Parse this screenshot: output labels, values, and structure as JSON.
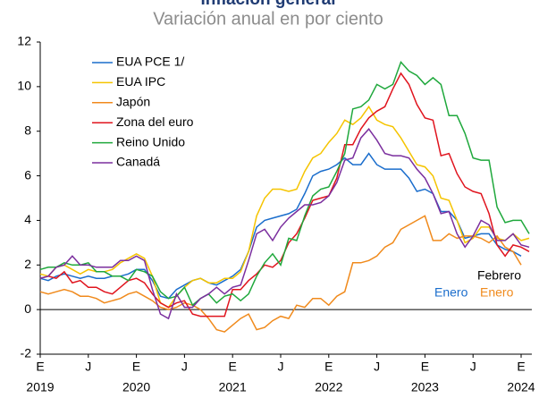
{
  "chart_data": {
    "type": "line",
    "title": "Inflación general",
    "subtitle": "Variación anual en por ciento",
    "categories": [
      "E",
      null,
      null,
      null,
      null,
      null,
      "J",
      null,
      null,
      null,
      null,
      null,
      "E",
      null,
      null,
      null,
      null,
      null,
      "J",
      null,
      null,
      null,
      null,
      null,
      "E",
      null,
      null,
      null,
      null,
      null,
      "J",
      null,
      null,
      null,
      null,
      null,
      "E",
      null,
      null,
      null,
      null,
      null,
      "J",
      null,
      null,
      null,
      null,
      null,
      "E",
      null,
      null,
      null,
      null,
      null,
      "J",
      null,
      null,
      null,
      null,
      null,
      "E",
      null
    ],
    "year_labels": [
      "2019",
      null,
      null,
      null,
      null,
      null,
      null,
      null,
      null,
      null,
      null,
      null,
      "2020",
      null,
      null,
      null,
      null,
      null,
      null,
      null,
      null,
      null,
      null,
      null,
      "2021",
      null,
      null,
      null,
      null,
      null,
      null,
      null,
      null,
      null,
      null,
      null,
      "2022",
      null,
      null,
      null,
      null,
      null,
      null,
      null,
      null,
      null,
      null,
      null,
      "2023",
      null,
      null,
      null,
      null,
      null,
      null,
      null,
      null,
      null,
      null,
      null,
      "2024",
      null
    ],
    "ylim": [
      -2,
      12
    ],
    "yticks": [
      -2,
      0,
      2,
      4,
      6,
      8,
      10,
      12
    ],
    "series": [
      {
        "name": "EUA PCE 1/",
        "color": "#1a6dcc",
        "values": [
          1.4,
          1.3,
          1.5,
          1.6,
          1.5,
          1.4,
          1.5,
          1.4,
          1.4,
          1.5,
          1.5,
          1.6,
          1.8,
          1.8,
          1.3,
          0.6,
          0.5,
          0.9,
          1.1,
          1.3,
          1.4,
          1.2,
          1.1,
          1.3,
          1.5,
          1.8,
          2.6,
          3.7,
          4.0,
          4.1,
          4.2,
          4.3,
          4.5,
          5.2,
          6.0,
          6.2,
          6.3,
          6.5,
          6.8,
          6.5,
          6.5,
          7.0,
          6.5,
          6.3,
          6.3,
          6.3,
          5.9,
          5.3,
          5.4,
          5.2,
          4.4,
          4.4,
          4.0,
          3.2,
          3.3,
          3.4,
          3.4,
          2.9,
          2.7,
          2.6,
          2.4,
          null
        ]
      },
      {
        "name": "EUA IPC",
        "color": "#f5c400",
        "values": [
          1.6,
          1.5,
          1.9,
          2.0,
          1.8,
          1.6,
          1.8,
          1.7,
          1.7,
          1.8,
          2.1,
          2.3,
          2.5,
          2.3,
          1.5,
          0.3,
          0.1,
          0.6,
          1.0,
          1.3,
          1.4,
          1.2,
          1.2,
          1.4,
          1.4,
          1.7,
          2.6,
          4.2,
          5.0,
          5.4,
          5.4,
          5.3,
          5.4,
          6.2,
          6.8,
          7.0,
          7.5,
          7.9,
          8.5,
          8.3,
          8.6,
          9.1,
          8.5,
          8.3,
          8.2,
          7.7,
          7.1,
          6.5,
          6.4,
          6.0,
          5.0,
          4.9,
          4.0,
          3.0,
          3.2,
          3.7,
          3.7,
          3.2,
          3.1,
          3.4,
          3.1,
          3.2
        ]
      },
      {
        "name": "Japón",
        "color": "#f08a1c",
        "values": [
          0.8,
          0.7,
          0.8,
          0.9,
          0.8,
          0.6,
          0.6,
          0.5,
          0.3,
          0.4,
          0.5,
          0.7,
          0.8,
          0.6,
          0.4,
          0.1,
          0.0,
          0.1,
          0.3,
          0.2,
          0.0,
          -0.4,
          -0.9,
          -1.0,
          -0.7,
          -0.4,
          -0.2,
          -0.9,
          -0.8,
          -0.5,
          -0.3,
          -0.4,
          0.2,
          0.1,
          0.5,
          0.5,
          0.2,
          0.6,
          0.8,
          2.1,
          2.1,
          2.2,
          2.4,
          2.8,
          3.0,
          3.6,
          3.8,
          4.0,
          4.2,
          3.1,
          3.1,
          3.4,
          3.2,
          3.3,
          3.3,
          3.2,
          3.0,
          3.3,
          2.8,
          2.6,
          2.0,
          null
        ]
      },
      {
        "name": "Zona del euro",
        "color": "#e0141e",
        "values": [
          1.4,
          1.5,
          1.4,
          1.7,
          1.2,
          1.3,
          1.0,
          1.0,
          0.8,
          0.7,
          1.0,
          1.3,
          1.4,
          1.2,
          0.7,
          0.3,
          0.1,
          0.3,
          0.4,
          -0.2,
          -0.3,
          -0.3,
          -0.3,
          -0.3,
          0.9,
          0.9,
          1.3,
          1.6,
          2.0,
          1.9,
          2.2,
          3.0,
          3.4,
          4.1,
          4.9,
          5.0,
          5.1,
          5.9,
          7.4,
          7.4,
          8.1,
          8.6,
          8.9,
          9.1,
          9.9,
          10.6,
          10.1,
          9.2,
          8.6,
          8.5,
          6.9,
          7.0,
          6.1,
          5.5,
          5.3,
          5.2,
          4.3,
          2.9,
          2.4,
          2.9,
          2.8,
          2.6
        ]
      },
      {
        "name": "Reino Unido",
        "color": "#1fa83c",
        "values": [
          1.8,
          1.9,
          1.9,
          2.1,
          2.0,
          2.0,
          2.1,
          1.7,
          1.7,
          1.5,
          1.5,
          1.3,
          1.8,
          1.7,
          1.5,
          0.8,
          0.5,
          0.6,
          1.0,
          0.2,
          0.5,
          0.7,
          0.3,
          0.6,
          0.7,
          0.4,
          0.7,
          1.5,
          2.1,
          2.5,
          2.0,
          3.2,
          3.1,
          4.2,
          5.1,
          5.4,
          5.5,
          6.2,
          7.0,
          9.0,
          9.1,
          9.4,
          10.1,
          9.9,
          10.1,
          11.1,
          10.7,
          10.5,
          10.1,
          10.4,
          10.1,
          8.7,
          8.7,
          7.9,
          6.8,
          6.7,
          6.7,
          4.6,
          3.9,
          4.0,
          4.0,
          3.4
        ]
      },
      {
        "name": "Canadá",
        "color": "#7b2f9e",
        "values": [
          1.4,
          1.5,
          1.9,
          2.0,
          2.4,
          2.0,
          2.0,
          1.9,
          1.9,
          1.9,
          2.2,
          2.2,
          2.4,
          2.2,
          0.9,
          -0.2,
          -0.4,
          0.7,
          0.1,
          0.1,
          0.5,
          0.7,
          1.0,
          0.7,
          1.0,
          1.1,
          2.2,
          3.4,
          3.6,
          3.1,
          3.7,
          4.1,
          4.4,
          4.7,
          4.7,
          4.8,
          5.1,
          5.7,
          6.7,
          6.8,
          7.7,
          8.1,
          7.6,
          7.0,
          6.9,
          6.9,
          6.8,
          6.3,
          5.9,
          5.2,
          4.3,
          4.4,
          3.4,
          2.8,
          3.3,
          4.0,
          3.8,
          3.1,
          3.1,
          3.4,
          2.9,
          2.8
        ]
      }
    ],
    "annotations": [
      {
        "text": "Febrero",
        "color": "#000000"
      },
      {
        "text": "Enero",
        "color": "#1a6dcc"
      },
      {
        "text": "Enero",
        "color": "#f08a1c"
      }
    ]
  }
}
